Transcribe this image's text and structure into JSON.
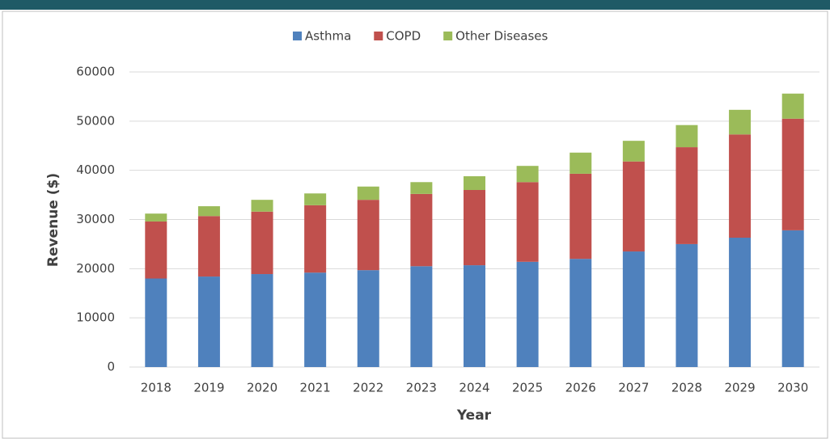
{
  "chart_data": {
    "type": "stacked_bar",
    "categories": [
      "2018",
      "2019",
      "2020",
      "2021",
      "2022",
      "2023",
      "2024",
      "2025",
      "2026",
      "2027",
      "2028",
      "2029",
      "2030"
    ],
    "series": [
      {
        "name": "Asthma",
        "color": "#4f81bd",
        "values": [
          18000,
          18400,
          18900,
          19200,
          19700,
          20500,
          20700,
          21400,
          22000,
          23500,
          25000,
          26300,
          27800
        ]
      },
      {
        "name": "COPD",
        "color": "#c0504d",
        "values": [
          11600,
          12300,
          12700,
          13700,
          14300,
          14700,
          15300,
          16200,
          17300,
          18300,
          19700,
          21000,
          22700
        ]
      },
      {
        "name": "Other Diseases",
        "color": "#9bbb59",
        "values": [
          1600,
          2000,
          2400,
          2400,
          2700,
          2400,
          2800,
          3300,
          4300,
          4200,
          4500,
          5000,
          5100
        ]
      }
    ],
    "xlabel": "Year",
    "ylabel": "Revenue ($)",
    "ylim": [
      0,
      60000
    ],
    "yticks": [
      0,
      10000,
      20000,
      30000,
      40000,
      50000,
      60000
    ],
    "grid": true,
    "legend": "top"
  }
}
